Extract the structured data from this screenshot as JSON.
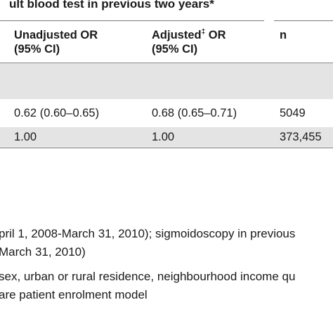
{
  "title": "ult blood test in previous two years*",
  "header": {
    "col_unadjusted": [
      "Unadjusted OR",
      "(95% CI)"
    ],
    "col_adjusted_word": "Adjusted",
    "col_adjusted_mark": "‡",
    "col_adjusted_rest": " OR",
    "col_adjusted_ci": "(95% CI)",
    "col_n": "n"
  },
  "rows": [
    {
      "unadjusted": "0.62 (0.60–0.65)",
      "adjusted": "0.68 (0.65–0.71)",
      "n": "5049"
    },
    {
      "unadjusted": "1.00",
      "adjusted": "1.00",
      "n": "373,455"
    }
  ],
  "footnotes": [
    "pril 1, 2008-March 31, 2010); sigmoidoscopy in previous",
    "March 31, 2010)",
    "sex, urban or rural residence, neighbourhood income qu",
    "are patient enrolment model"
  ]
}
